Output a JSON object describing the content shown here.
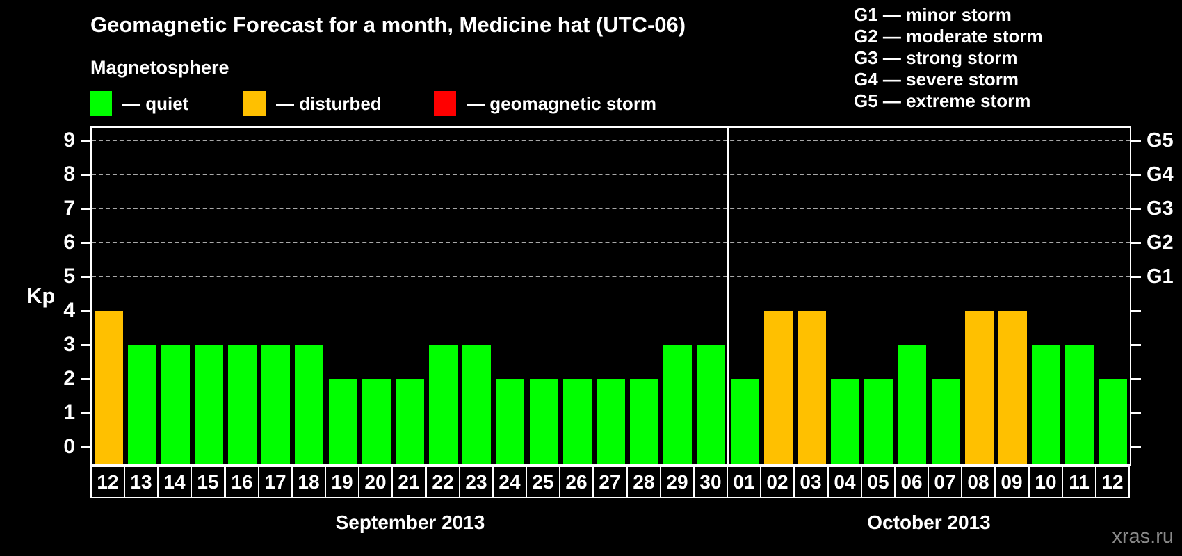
{
  "title": "Geomagnetic Forecast for a month, Medicine hat (UTC-06)",
  "subtitle": "Magnetosphere",
  "watermark": "xras.ru",
  "legend": {
    "items": [
      {
        "key": "quiet",
        "label": "— quiet",
        "color": "#00ff00"
      },
      {
        "key": "disturbed",
        "label": "— disturbed",
        "color": "#ffc000"
      },
      {
        "key": "storm",
        "label": "— geomagnetic storm",
        "color": "#ff0000"
      }
    ]
  },
  "g_scale_legend": [
    "G1 — minor storm",
    "G2 — moderate storm",
    "G3 — strong storm",
    "G4 — severe storm",
    "G5 — extreme storm"
  ],
  "chart_data": {
    "type": "bar",
    "title": "Geomagnetic Forecast for a month, Medicine hat (UTC-06)",
    "ylabel": "Kp",
    "ylim": [
      0,
      9
    ],
    "yticks": [
      0,
      1,
      2,
      3,
      4,
      5,
      6,
      7,
      8,
      9
    ],
    "gridlines_at_kp": [
      5,
      6,
      7,
      8,
      9
    ],
    "grid": "dashed horizontal at storm levels only",
    "legend_position": "top",
    "right_axis_labels": [
      {
        "kp": 5,
        "label": "G1"
      },
      {
        "kp": 6,
        "label": "G2"
      },
      {
        "kp": 7,
        "label": "G3"
      },
      {
        "kp": 8,
        "label": "G4"
      },
      {
        "kp": 9,
        "label": "G5"
      }
    ],
    "months": [
      {
        "label": "September 2013",
        "days": [
          {
            "d": "12",
            "kp": 4,
            "state": "disturbed"
          },
          {
            "d": "13",
            "kp": 3,
            "state": "quiet"
          },
          {
            "d": "14",
            "kp": 3,
            "state": "quiet"
          },
          {
            "d": "15",
            "kp": 3,
            "state": "quiet"
          },
          {
            "d": "16",
            "kp": 3,
            "state": "quiet"
          },
          {
            "d": "17",
            "kp": 3,
            "state": "quiet"
          },
          {
            "d": "18",
            "kp": 3,
            "state": "quiet"
          },
          {
            "d": "19",
            "kp": 2,
            "state": "quiet"
          },
          {
            "d": "20",
            "kp": 2,
            "state": "quiet"
          },
          {
            "d": "21",
            "kp": 2,
            "state": "quiet"
          },
          {
            "d": "22",
            "kp": 3,
            "state": "quiet"
          },
          {
            "d": "23",
            "kp": 3,
            "state": "quiet"
          },
          {
            "d": "24",
            "kp": 2,
            "state": "quiet"
          },
          {
            "d": "25",
            "kp": 2,
            "state": "quiet"
          },
          {
            "d": "26",
            "kp": 2,
            "state": "quiet"
          },
          {
            "d": "27",
            "kp": 2,
            "state": "quiet"
          },
          {
            "d": "28",
            "kp": 2,
            "state": "quiet"
          },
          {
            "d": "29",
            "kp": 3,
            "state": "quiet"
          },
          {
            "d": "30",
            "kp": 3,
            "state": "quiet"
          }
        ]
      },
      {
        "label": "October 2013",
        "days": [
          {
            "d": "01",
            "kp": 2,
            "state": "quiet"
          },
          {
            "d": "02",
            "kp": 4,
            "state": "disturbed"
          },
          {
            "d": "03",
            "kp": 4,
            "state": "disturbed"
          },
          {
            "d": "04",
            "kp": 2,
            "state": "quiet"
          },
          {
            "d": "05",
            "kp": 2,
            "state": "quiet"
          },
          {
            "d": "06",
            "kp": 3,
            "state": "quiet"
          },
          {
            "d": "07",
            "kp": 2,
            "state": "quiet"
          },
          {
            "d": "08",
            "kp": 4,
            "state": "disturbed"
          },
          {
            "d": "09",
            "kp": 4,
            "state": "disturbed"
          },
          {
            "d": "10",
            "kp": 3,
            "state": "quiet"
          },
          {
            "d": "11",
            "kp": 3,
            "state": "quiet"
          },
          {
            "d": "12",
            "kp": 2,
            "state": "quiet"
          }
        ]
      }
    ]
  }
}
